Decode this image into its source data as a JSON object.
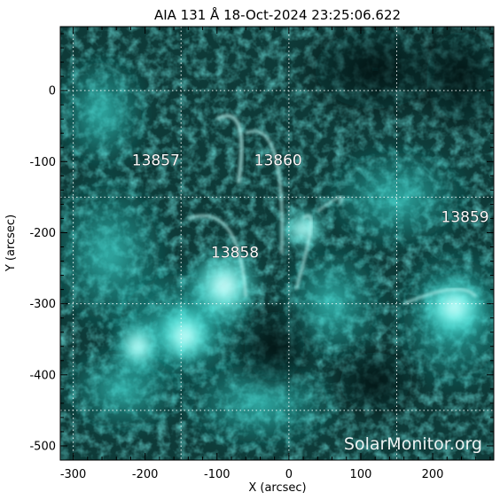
{
  "title": "AIA 131 Å 18-Oct-2024 23:25:06.622",
  "axes": {
    "xlabel": "X (arcsec)",
    "ylabel": "Y (arcsec)",
    "x_range": [
      -318,
      285
    ],
    "y_range": [
      -520,
      90
    ],
    "x_ticks": [
      -300,
      -200,
      -100,
      0,
      100,
      200
    ],
    "y_ticks": [
      0,
      -100,
      -200,
      -300,
      -400,
      -500
    ],
    "grid": true,
    "grid_step": 150
  },
  "colors": {
    "background": "#ffffff",
    "image_base": "#0a2a2a",
    "cyan": "#20e0d8",
    "bright": "#e8ffff",
    "text": "#000000",
    "label": "#ffffff"
  },
  "region_labels": [
    {
      "id": "13857",
      "x": -185,
      "y": -105
    },
    {
      "id": "13860",
      "x": -15,
      "y": -105
    },
    {
      "id": "13858",
      "x": -75,
      "y": -235
    },
    {
      "id": "13859",
      "x": 245,
      "y": -185
    }
  ],
  "watermark": "SolarMonitor.org"
}
